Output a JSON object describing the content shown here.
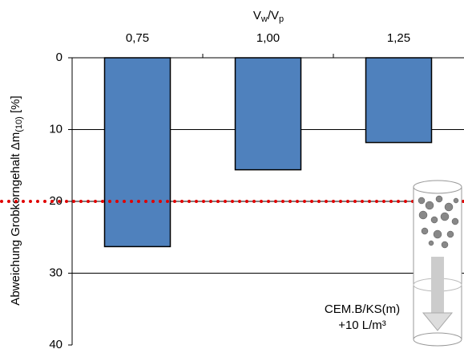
{
  "chart_data": {
    "type": "bar",
    "x_label": [
      "V",
      "w",
      "/V",
      "p"
    ],
    "y_label": [
      "Abweichung Grobkorngehalt  Δm",
      "(10)",
      " [%]"
    ],
    "categories": [
      "0,75",
      "1,00",
      "1,25"
    ],
    "values": [
      26.3,
      15.6,
      11.8
    ],
    "color": "#4f81bd",
    "ylim": [
      0,
      40
    ],
    "yticks": [
      0,
      10,
      20,
      30,
      40
    ],
    "y_inverted": true,
    "grid": true,
    "reference_line": {
      "value": 20,
      "color": "#e00000"
    },
    "annotation": [
      "CEM.B/KS(m)",
      "+10 L/m³"
    ]
  }
}
